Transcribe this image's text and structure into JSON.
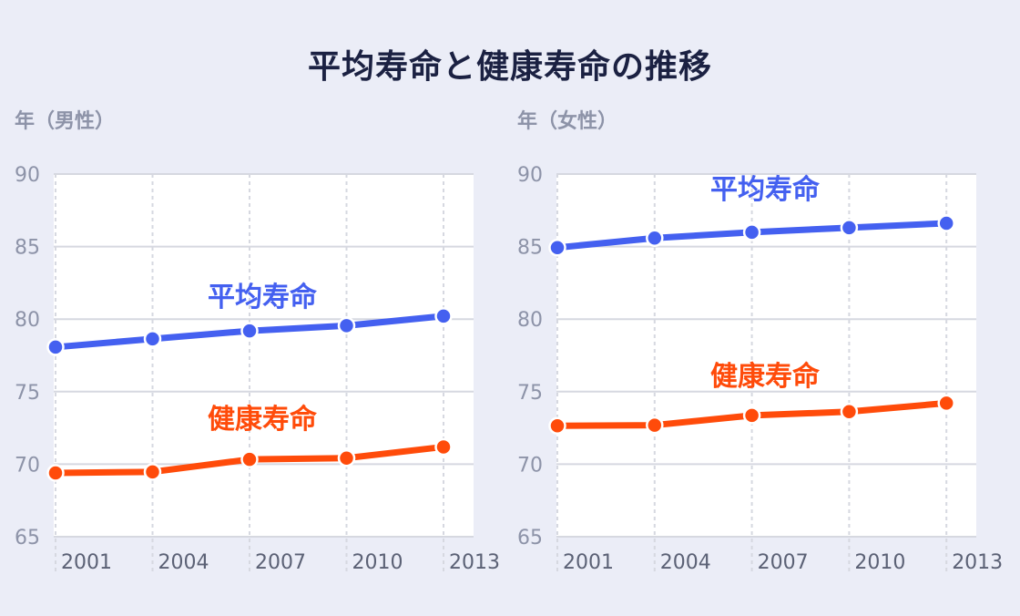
{
  "title": "平均寿命と健康寿命の推移",
  "colors": {
    "average": "#4460f0",
    "healthy": "#ff4b0a",
    "grid": "#d6d8e0",
    "plot_bg": "#ffffff",
    "background": "#ebedf7"
  },
  "chart_data": [
    {
      "type": "line",
      "ylabel": "年（男性）",
      "x": [
        "2001",
        "2004",
        "2007",
        "2010",
        "2013"
      ],
      "ylim": [
        65,
        90
      ],
      "yticks": [
        90,
        85,
        80,
        75,
        70,
        65
      ],
      "grid": true,
      "series": [
        {
          "name": "平均寿命",
          "values": [
            78.07,
            78.64,
            79.19,
            79.55,
            80.21
          ],
          "color": "#4460f0"
        },
        {
          "name": "健康寿命",
          "values": [
            69.4,
            69.47,
            70.33,
            70.42,
            71.19
          ],
          "color": "#ff4b0a"
        }
      ]
    },
    {
      "type": "line",
      "ylabel": "年（女性）",
      "x": [
        "2001",
        "2004",
        "2007",
        "2010",
        "2013"
      ],
      "ylim": [
        65,
        90
      ],
      "yticks": [
        90,
        85,
        80,
        75,
        70,
        65
      ],
      "grid": true,
      "series": [
        {
          "name": "平均寿命",
          "values": [
            84.93,
            85.59,
            85.99,
            86.3,
            86.61
          ],
          "color": "#4460f0"
        },
        {
          "name": "健康寿命",
          "values": [
            72.65,
            72.69,
            73.36,
            73.62,
            74.21
          ],
          "color": "#ff4b0a"
        }
      ]
    }
  ]
}
